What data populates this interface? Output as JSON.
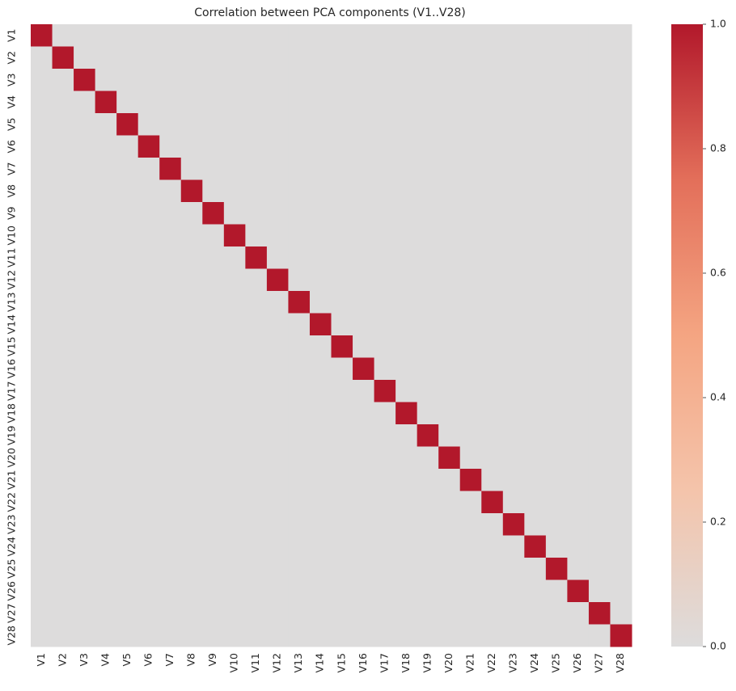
{
  "chart_data": {
    "type": "heatmap",
    "title": "Correlation between PCA components (V1..V28)",
    "xlabel": "",
    "ylabel": "",
    "x_labels": [
      "V1",
      "V2",
      "V3",
      "V4",
      "V5",
      "V6",
      "V7",
      "V8",
      "V9",
      "V10",
      "V11",
      "V12",
      "V13",
      "V14",
      "V15",
      "V16",
      "V17",
      "V18",
      "V19",
      "V20",
      "V21",
      "V22",
      "V23",
      "V24",
      "V25",
      "V26",
      "V27",
      "V28"
    ],
    "y_labels": [
      "V1",
      "V2",
      "V3",
      "V4",
      "V5",
      "V6",
      "V7",
      "V8",
      "V9",
      "V10",
      "V11",
      "V12",
      "V13",
      "V14",
      "V15",
      "V16",
      "V17",
      "V18",
      "V19",
      "V20",
      "V21",
      "V22",
      "V23",
      "V24",
      "V25",
      "V26",
      "V27",
      "V28"
    ],
    "value_note_diagonal": 1.0,
    "value_note_offdiagonal": 0.0,
    "colorbar": {
      "vmin": 0.0,
      "vmax": 1.0,
      "ticks": [
        0.0,
        0.2,
        0.4,
        0.6,
        0.8,
        1.0
      ],
      "tick_labels": [
        "0.0",
        "0.2",
        "0.4",
        "0.6",
        "0.8",
        "1.0"
      ],
      "colors": {
        "low": "#dddcdc",
        "mid_low": "#f4c4ab",
        "mid": "#f4a582",
        "mid_high": "#e36f5a",
        "high": "#b2182b"
      },
      "position": "right"
    },
    "grid": false,
    "legend": "none"
  }
}
